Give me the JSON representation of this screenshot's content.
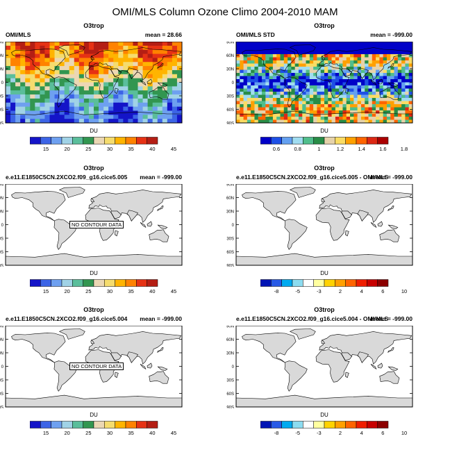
{
  "title": "OMI/MLS Column Ozone Climo 2004-2010 MAM",
  "lat_ticks": [
    "90N",
    "60N",
    "30N",
    "0",
    "30S",
    "60S",
    "90S"
  ],
  "colors": {
    "land": "#d9d9d9",
    "coast": "#000000",
    "clim": [
      "#1414c8",
      "#3c64e6",
      "#6ea0f0",
      "#a0d2e6",
      "#5abe9b",
      "#329650",
      "#ebd7b4",
      "#f5dc6e",
      "#ffb400",
      "#ff8200",
      "#e63214",
      "#b41e14"
    ],
    "std": [
      "#0000c8",
      "#1e50e6",
      "#64a0f0",
      "#a0dcf0",
      "#50be8c",
      "#288c46",
      "#e6d2aa",
      "#fadc64",
      "#ffa000",
      "#ff6400",
      "#dc2814",
      "#aa0000"
    ],
    "diff": [
      "#0014b4",
      "#285ae6",
      "#00aaf0",
      "#8cdcf0",
      "#ffffff",
      "#ffffa0",
      "#ffd200",
      "#ffa000",
      "#ff6400",
      "#f01e00",
      "#c80000",
      "#8c0000"
    ]
  },
  "panels": [
    {
      "subtitle": "O3trop",
      "left": "OMI/MLS",
      "right": "mean =  28.66",
      "filled": "clim",
      "units": "DU",
      "colorbar": "clim",
      "labels": [
        "15",
        "20",
        "25",
        "30",
        "35",
        "40",
        "45"
      ]
    },
    {
      "subtitle": "O3trop",
      "left": "OMI/MLS STD",
      "right": "mean = -999.00",
      "filled": "std",
      "units": "DU",
      "colorbar": "std",
      "labels": [
        "0.6",
        "0.8",
        "1",
        "1.2",
        "1.4",
        "1.6",
        "1.8"
      ]
    },
    {
      "subtitle": "O3trop",
      "left": "e.e11.E1850C5CN.2XCO2.f09_g16.cice5.005",
      "right": "mean = -999.00",
      "nodata": "NO CONTOUR DATA",
      "units": "DU",
      "colorbar": "clim",
      "labels": [
        "15",
        "20",
        "25",
        "30",
        "35",
        "40",
        "45"
      ]
    },
    {
      "subtitle": "O3trop",
      "left": "e.e11.E1850C5CN.2XCO2.f09_g16.cice5.005 - OMI/MLS",
      "right": "mean = -999.00",
      "nodata": "",
      "units": "DU",
      "colorbar": "diff",
      "labels": [
        "-8",
        "-5",
        "-3",
        "2",
        "4",
        "6",
        "10"
      ]
    },
    {
      "subtitle": "O3trop",
      "left": "e.e11.E1850C5CN.2XCO2.f09_g16.cice5.004",
      "right": "mean = -999.00",
      "nodata": "NO CONTOUR DATA",
      "units": "DU",
      "colorbar": "clim",
      "labels": [
        "15",
        "20",
        "25",
        "30",
        "35",
        "40",
        "45"
      ]
    },
    {
      "subtitle": "O3trop",
      "left": "e.e11.E1850C5CN.2XCO2.f09_g16.cice5.004 - OMI/MLS",
      "right": "mean = -999.00",
      "nodata": "",
      "units": "DU",
      "colorbar": "diff",
      "labels": [
        "-8",
        "-5",
        "-3",
        "2",
        "4",
        "6",
        "10"
      ]
    }
  ]
}
